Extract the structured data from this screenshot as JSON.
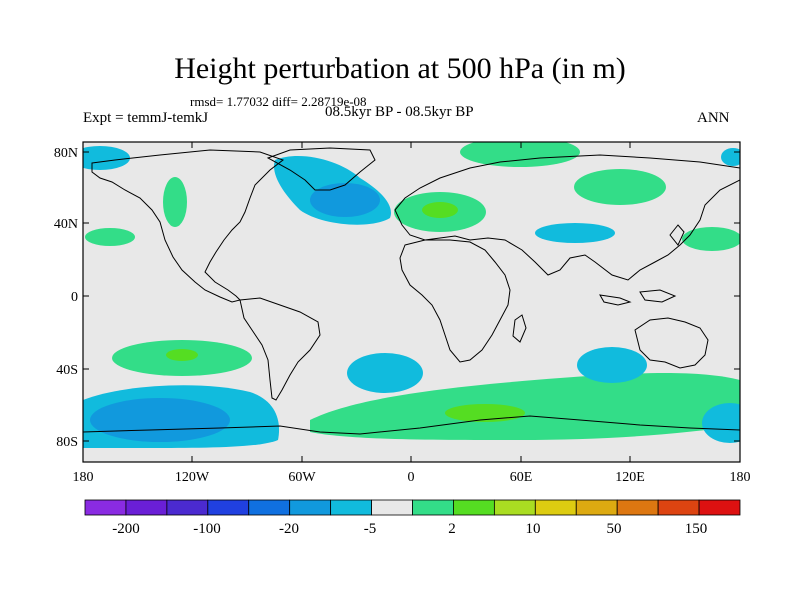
{
  "title": "Height perturbation at 500 hPa (in m)",
  "stats": "rmsd= 1.77032 diff= 2.28719e-08",
  "experiment": "Expt = temmJ-temkJ",
  "period": "08.5kyr BP - 08.5kyr BP",
  "season": "ANN",
  "colors": {
    "land_fill": "#e8e8e8",
    "pos_light": "#33dd88",
    "pos_mid": "#55dd22",
    "neg_light": "#11bbdd",
    "neg_mid": "#1199dd"
  },
  "map": {
    "lat_ticks": [
      "80N",
      "40N",
      "0",
      "40S",
      "80S"
    ],
    "lon_ticks": [
      "180",
      "120W",
      "60W",
      "0",
      "60E",
      "120E",
      "180"
    ]
  },
  "colorbar": {
    "colors": [
      "#8a2be2",
      "#6a1fd6",
      "#4b2ad0",
      "#2040e0",
      "#1070e0",
      "#1199dd",
      "#11bbdd",
      "#e8e8e8",
      "#33dd88",
      "#55dd22",
      "#aadd22",
      "#ddcc11",
      "#ddaa11",
      "#dd7711",
      "#dd4411",
      "#dd1111"
    ],
    "labels": [
      "-200",
      "-100",
      "-20",
      "-5",
      "2",
      "10",
      "50",
      "150"
    ]
  }
}
